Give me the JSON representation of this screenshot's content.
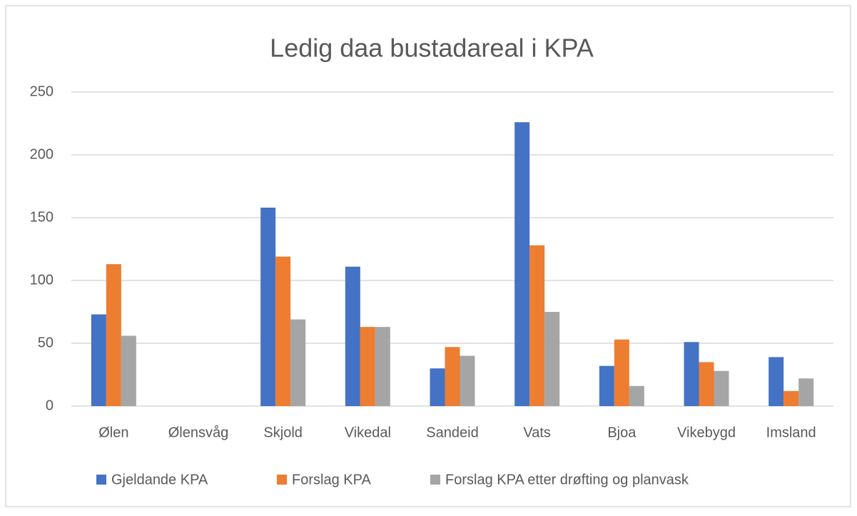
{
  "chart_data": {
    "type": "bar",
    "title": "Ledig daa bustadareal i KPA",
    "categories": [
      "Ølen",
      "Ølensvåg",
      "Skjold",
      "Vikedal",
      "Sandeid",
      "Vats",
      "Bjoa",
      "Vikebygd",
      "Imsland"
    ],
    "series": [
      {
        "name": "Gjeldande KPA",
        "color": "#4472c4",
        "values": [
          73,
          0,
          158,
          111,
          30,
          226,
          32,
          51,
          39
        ]
      },
      {
        "name": "Forslag KPA",
        "color": "#ed7d31",
        "values": [
          113,
          0,
          119,
          63,
          47,
          128,
          53,
          35,
          12
        ]
      },
      {
        "name": "Forslag KPA etter drøfting og planvask",
        "color": "#a5a5a5",
        "values": [
          56,
          0,
          69,
          63,
          40,
          75,
          16,
          28,
          22
        ]
      }
    ],
    "ylim": [
      0,
      250
    ],
    "yticks": [
      0,
      50,
      100,
      150,
      200,
      250
    ],
    "grid": true,
    "legend": "bottom"
  }
}
